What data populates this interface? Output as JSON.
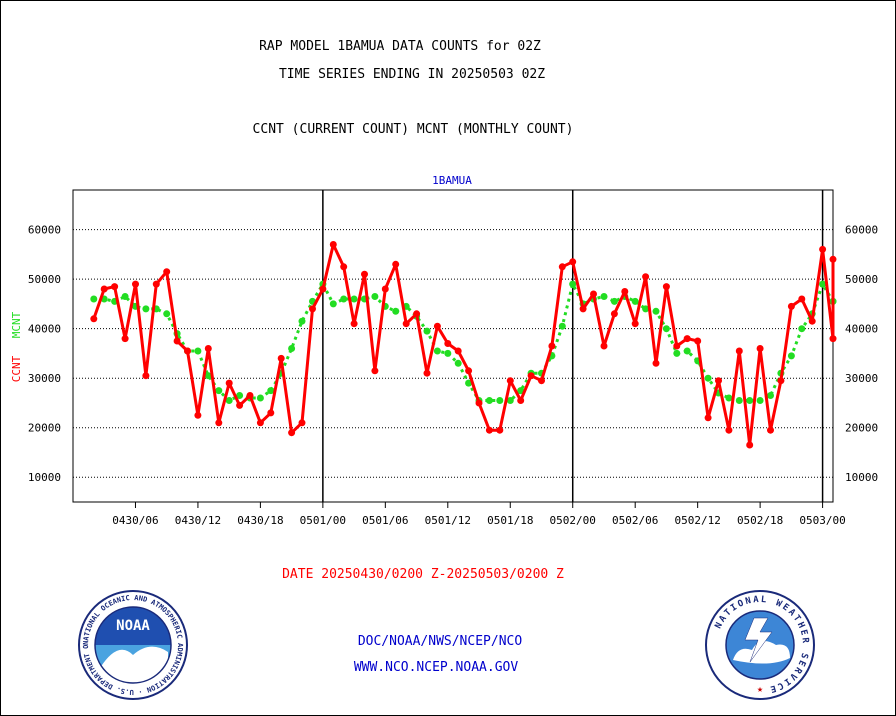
{
  "header": {
    "title_line1": "RAP MODEL 1BAMUA DATA COUNTS for 02Z",
    "title_line2": "TIME SERIES ENDING IN 20250503 02Z",
    "subtitle": "CCNT (CURRENT COUNT) MCNT (MONTHLY COUNT)"
  },
  "footer": {
    "date_range": "DATE 20250430/0200 Z-20250503/0200 Z",
    "org_path": "DOC/NOAA/NWS/NCEP/NCO",
    "url": "WWW.NCO.NCEP.NOAA.GOV",
    "noaa_logo_text": "NOAA",
    "noaa_ring_text": "NATIONAL OCEANIC AND ATMOSPHERIC ADMINISTRATION · U.S. DEPARTMENT OF COMMERCE",
    "nws_ring_text": "NATIONAL WEATHER SERVICE"
  },
  "colors": {
    "ccnt": "#ff0000",
    "mcnt": "#22dd22",
    "title": "#000000",
    "panel_label": "#0000cc",
    "date_text": "#ff0000",
    "link_text": "#0000cc"
  },
  "chart_data": {
    "type": "line",
    "panel_label": "1BAMUA",
    "ylabel_left": [
      "CCNT",
      "MCNT"
    ],
    "yticks": [
      10000,
      20000,
      30000,
      40000,
      50000,
      60000
    ],
    "ylim": [
      5000,
      68000
    ],
    "x_unit": "hours since 2025-04-30 00Z",
    "xlim": [
      0,
      73
    ],
    "x_ticks": [
      {
        "x": 6,
        "label": "0430/06"
      },
      {
        "x": 12,
        "label": "0430/12"
      },
      {
        "x": 18,
        "label": "0430/18"
      },
      {
        "x": 24,
        "label": "0501/00"
      },
      {
        "x": 30,
        "label": "0501/06"
      },
      {
        "x": 36,
        "label": "0501/12"
      },
      {
        "x": 42,
        "label": "0501/18"
      },
      {
        "x": 48,
        "label": "0502/00"
      },
      {
        "x": 54,
        "label": "0502/06"
      },
      {
        "x": 60,
        "label": "0502/12"
      },
      {
        "x": 66,
        "label": "0502/18"
      },
      {
        "x": 72,
        "label": "0503/00"
      }
    ],
    "day_boundaries": [
      24,
      48,
      72
    ],
    "grid": "horizontal",
    "series": [
      {
        "name": "CCNT",
        "x": [
          2,
          3,
          4,
          5,
          6,
          7,
          8,
          9,
          10,
          11,
          12,
          13,
          14,
          15,
          16,
          17,
          18,
          19,
          20,
          21,
          22,
          23,
          24,
          25,
          26,
          27,
          28,
          29,
          30,
          31,
          32,
          33,
          34,
          35,
          36,
          37,
          38,
          39,
          40,
          41,
          42,
          43,
          44,
          45,
          46,
          47,
          48,
          49,
          50,
          51,
          52,
          53,
          54,
          55,
          56,
          57,
          58,
          59,
          60,
          61,
          62,
          63,
          64,
          65,
          66,
          67,
          68,
          69,
          70,
          71,
          72,
          73
        ],
        "values": [
          42000,
          48000,
          48500,
          38000,
          49000,
          30500,
          49000,
          51500,
          37500,
          35500,
          22500,
          36000,
          21000,
          29000,
          24500,
          26500,
          21000,
          23000,
          34000,
          19000,
          21000,
          44000,
          48000,
          57000,
          52500,
          41000,
          51000,
          31500,
          48000,
          53000,
          41000,
          43000,
          31000,
          40500,
          37000,
          35500,
          31500,
          25000,
          19500,
          19500,
          29500,
          25500,
          30500,
          29500,
          36500,
          52500,
          53500,
          44000,
          47000,
          36500,
          43000,
          47500,
          41000,
          50500,
          33000,
          48500,
          36500,
          38000,
          37500,
          22000,
          29500,
          19500,
          35500,
          16500,
          36000,
          19500,
          29500,
          44500,
          46000,
          41500,
          56000,
          38000
        ],
        "extra_end_value": 54000
      },
      {
        "name": "MCNT",
        "x": [
          2,
          3,
          4,
          5,
          6,
          7,
          8,
          9,
          10,
          11,
          12,
          13,
          14,
          15,
          16,
          17,
          18,
          19,
          20,
          21,
          22,
          23,
          24,
          25,
          26,
          27,
          28,
          29,
          30,
          31,
          32,
          33,
          34,
          35,
          36,
          37,
          38,
          39,
          40,
          41,
          42,
          43,
          44,
          45,
          46,
          47,
          48,
          49,
          50,
          51,
          52,
          53,
          54,
          55,
          56,
          57,
          58,
          59,
          60,
          61,
          62,
          63,
          64,
          65,
          66,
          67,
          68,
          69,
          70,
          71,
          72,
          73
        ],
        "values": [
          46000,
          46000,
          45500,
          46500,
          44500,
          44000,
          44000,
          43000,
          39000,
          35500,
          35500,
          30500,
          27500,
          25500,
          26500,
          26000,
          26000,
          27500,
          31000,
          36000,
          41500,
          45500,
          49000,
          45000,
          46000,
          46000,
          46000,
          46500,
          44500,
          43500,
          44500,
          42500,
          39500,
          35500,
          35000,
          33000,
          29000,
          25500,
          25500,
          25500,
          25500,
          27500,
          31000,
          31000,
          34500,
          40500,
          49000,
          45000,
          46000,
          46500,
          45500,
          46500,
          45500,
          44000,
          43500,
          40000,
          35000,
          35500,
          33500,
          30000,
          27000,
          26000,
          25500,
          25500,
          25500,
          26500,
          31000,
          34500,
          40000,
          43000,
          49000,
          45500
        ],
        "extra_end_value": 45500
      }
    ]
  }
}
